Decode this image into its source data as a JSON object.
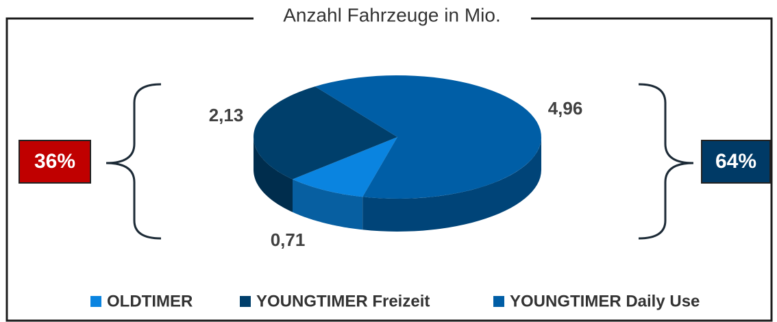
{
  "chart_data": {
    "type": "pie3d",
    "title": "Anzahl Fahrzeuge in Mio.",
    "categories": [
      "OLDTIMER",
      "YOUNGTIMER Freizeit",
      "YOUNGTIMER Daily Use"
    ],
    "values": [
      0.71,
      2.13,
      4.96
    ],
    "value_labels": [
      "0,71",
      "2,13",
      "4,96"
    ],
    "colors": [
      "#0a84e0",
      "#003f6b",
      "#005ea6"
    ],
    "group_labels": [
      {
        "text": "36%",
        "color": "#c00000"
      },
      {
        "text": "64%",
        "color": "#003a66"
      }
    ]
  }
}
